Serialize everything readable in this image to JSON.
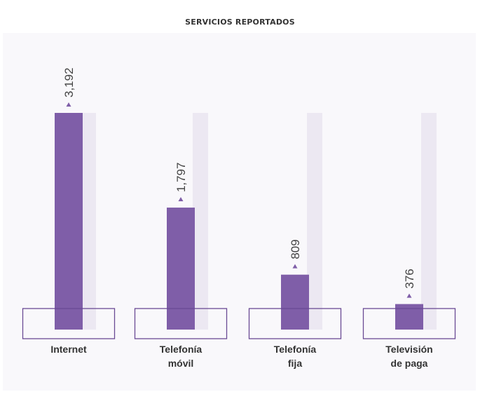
{
  "colors": {
    "background_panel": "#f9f8fb",
    "track": "#ece8f2",
    "bar": "#7f5ea8",
    "outline": "#6a4a94",
    "marker": "#7f5ea8"
  },
  "chart_data": {
    "type": "bar",
    "title": "SERVICIOS REPORTADOS",
    "categories": [
      "Internet",
      "Telefonía móvil",
      "Telefonía fija",
      "Televisión de paga"
    ],
    "category_lines": [
      [
        "Internet"
      ],
      [
        "Telefonía",
        "móvil"
      ],
      [
        "Telefonía",
        "fija"
      ],
      [
        "Televisión",
        "de paga"
      ]
    ],
    "values": [
      3192,
      1797,
      809,
      376
    ],
    "value_labels": [
      "3,192",
      "1,797",
      "809",
      "376"
    ],
    "xlabel": "",
    "ylabel": "",
    "ylim": [
      0,
      3192
    ],
    "grid": false,
    "legend": "none"
  }
}
